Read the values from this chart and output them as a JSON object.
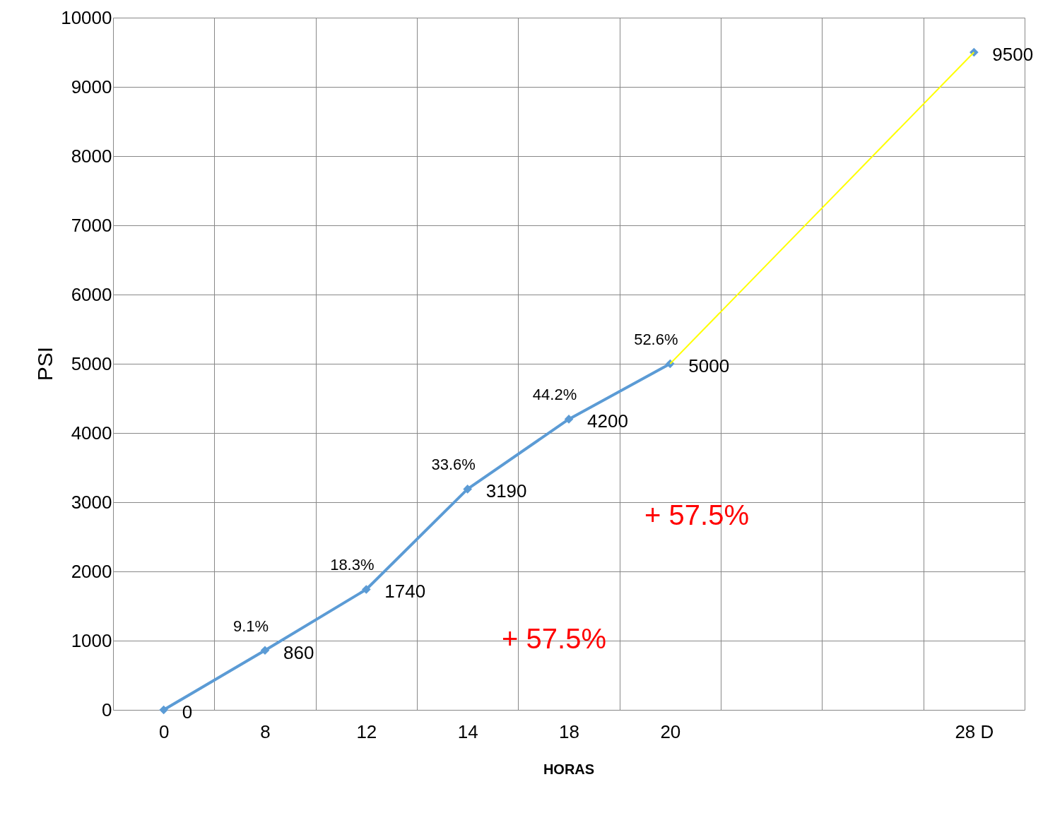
{
  "chart_data": {
    "type": "line",
    "xlabel": "HORAS",
    "ylabel": "PSI",
    "categories": [
      "0",
      "8",
      "12",
      "14",
      "18",
      "20",
      null,
      null,
      "28 D"
    ],
    "series": [
      {
        "color": "#5b9bd5",
        "marker": "diamond",
        "values": [
          0,
          860,
          1740,
          3190,
          4200,
          5000,
          null,
          null,
          9500
        ],
        "value_labels": [
          "0",
          "860",
          "1740",
          "3190",
          "4200",
          "5000",
          null,
          null,
          "9500"
        ]
      },
      {
        "color": "#ffff00",
        "marker": "none",
        "values": [
          null,
          null,
          null,
          null,
          null,
          5000,
          null,
          null,
          9500
        ]
      }
    ],
    "ylim": [
      0,
      10000
    ],
    "yticks": [
      0,
      1000,
      2000,
      3000,
      4000,
      5000,
      6000,
      7000,
      8000,
      9000,
      10000
    ],
    "grid": true,
    "legend": false,
    "annotations": [
      {
        "text": "9.1%",
        "x": "8",
        "y": 860
      },
      {
        "text": "18.3%",
        "x": "12",
        "y": 1740
      },
      {
        "text": "33.6%",
        "x": "14",
        "y": 3190
      },
      {
        "text": "44.2%",
        "x": "18",
        "y": 4200
      },
      {
        "text": "52.6%",
        "x": "20",
        "y": 5000
      },
      "+ 57.5%",
      "+ 57.5%"
    ]
  }
}
